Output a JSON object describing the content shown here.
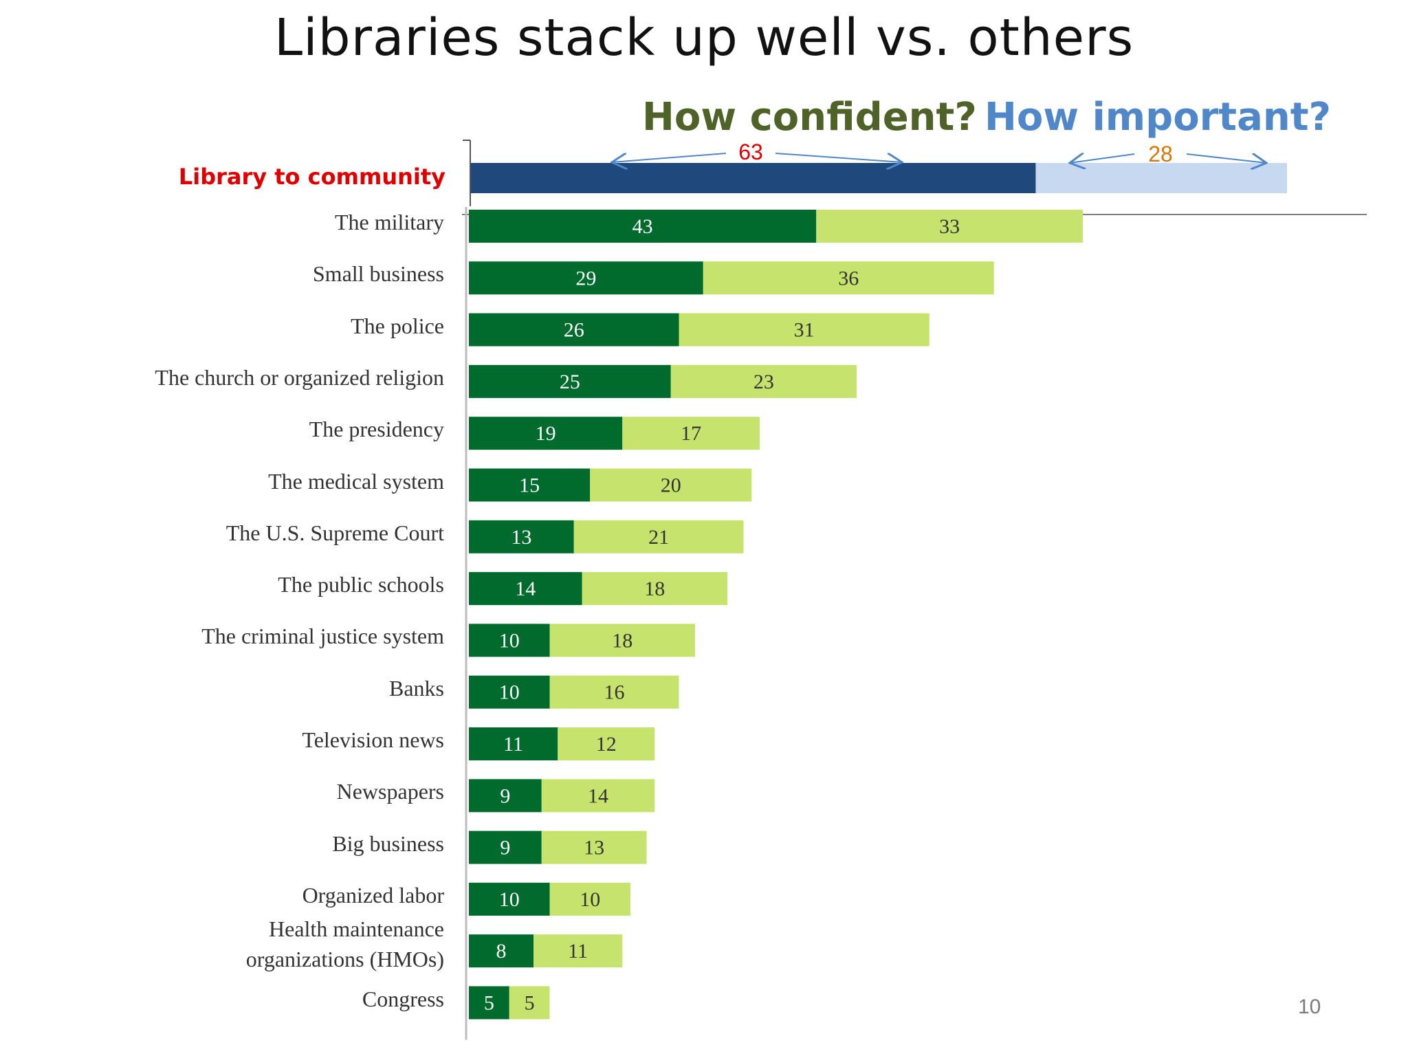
{
  "title": "Libraries stack up well vs. others",
  "headers": {
    "confident": "How confident?",
    "important": "How important?"
  },
  "page_number": "10",
  "colors": {
    "library_confident": "#1f497d",
    "library_important": "#c6d9f1",
    "confident": "#006b2d",
    "important": "#c5e36d",
    "library_label": "#e00000",
    "confident_arrow_label": "#e00000",
    "important_arrow_label": "#d97706",
    "arrow": "#4f87c8"
  },
  "chart_data": {
    "type": "bar",
    "orientation": "horizontal",
    "stacked": true,
    "highlight": {
      "label": "Library to community",
      "confident": 63,
      "important": 28
    },
    "categories": [
      "The military",
      "Small business",
      "The police",
      "The church or organized religion",
      "The presidency",
      "The medical system",
      "The U.S. Supreme Court",
      "The public schools",
      "The criminal justice system",
      "Banks",
      "Television news",
      "Newspapers",
      "Big business",
      "Organized labor",
      "Health maintenance organizations (HMOs)",
      "Congress"
    ],
    "series": [
      {
        "values": [
          43,
          29,
          26,
          25,
          19,
          15,
          13,
          14,
          10,
          10,
          11,
          9,
          9,
          10,
          8,
          5
        ]
      },
      {
        "values": [
          33,
          36,
          31,
          23,
          17,
          20,
          21,
          18,
          18,
          16,
          12,
          14,
          13,
          10,
          11,
          5
        ]
      }
    ]
  }
}
